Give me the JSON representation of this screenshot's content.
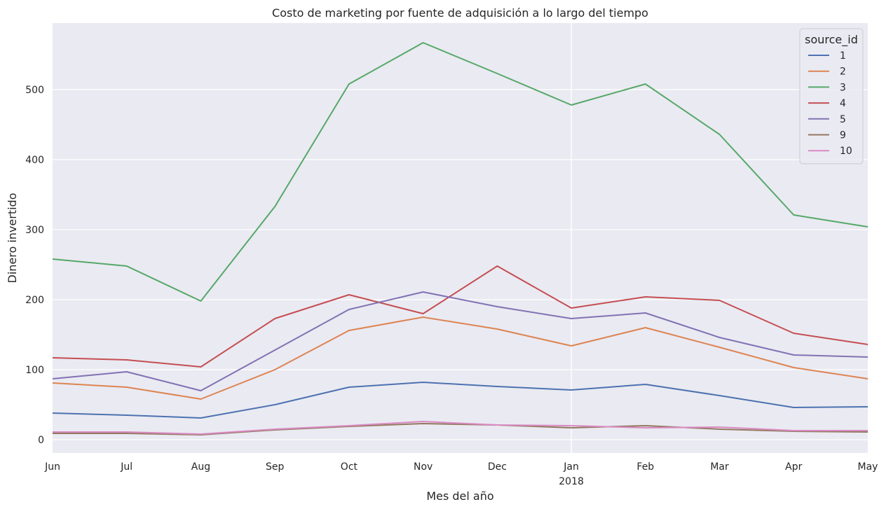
{
  "chart_data": {
    "type": "line",
    "title": "Costo de marketing por fuente de adquisición a lo largo del tiempo",
    "xlabel": "Mes del año",
    "ylabel": "Dinero invertido",
    "x": [
      "Jun",
      "Jul",
      "Aug",
      "Sep",
      "Oct",
      "Nov",
      "Dec",
      "Jan",
      "Feb",
      "Mar",
      "Apr",
      "May"
    ],
    "x_year_label": "2018",
    "x_year_label_under": "Jan",
    "yticks": [
      0,
      100,
      200,
      300,
      400,
      500
    ],
    "ylim": [
      -19,
      595
    ],
    "grid": true,
    "legend": {
      "title": "source_id",
      "placement": "top-right"
    },
    "series": [
      {
        "name": "1",
        "color": "#4c72b0",
        "values": [
          38,
          35,
          31,
          50,
          75,
          82,
          76,
          71,
          79,
          63,
          46,
          47
        ]
      },
      {
        "name": "2",
        "color": "#dd8452",
        "values": [
          81,
          75,
          58,
          100,
          156,
          175,
          158,
          134,
          160,
          132,
          103,
          87
        ]
      },
      {
        "name": "3",
        "color": "#55a868",
        "values": [
          258,
          248,
          198,
          333,
          508,
          567,
          523,
          478,
          508,
          436,
          321,
          304
        ]
      },
      {
        "name": "4",
        "color": "#c44e52",
        "values": [
          117,
          114,
          104,
          173,
          207,
          180,
          248,
          188,
          204,
          199,
          152,
          136
        ]
      },
      {
        "name": "5",
        "color": "#8172b3",
        "values": [
          87,
          97,
          70,
          128,
          186,
          211,
          190,
          173,
          181,
          146,
          121,
          118
        ]
      },
      {
        "name": "9",
        "color": "#937860",
        "values": [
          9,
          9,
          7,
          14,
          19,
          23,
          21,
          17,
          20,
          15,
          12,
          11
        ]
      },
      {
        "name": "10",
        "color": "#da8bc3",
        "values": [
          11,
          11,
          8,
          15,
          20,
          26,
          21,
          20,
          17,
          18,
          13,
          13
        ]
      }
    ]
  }
}
